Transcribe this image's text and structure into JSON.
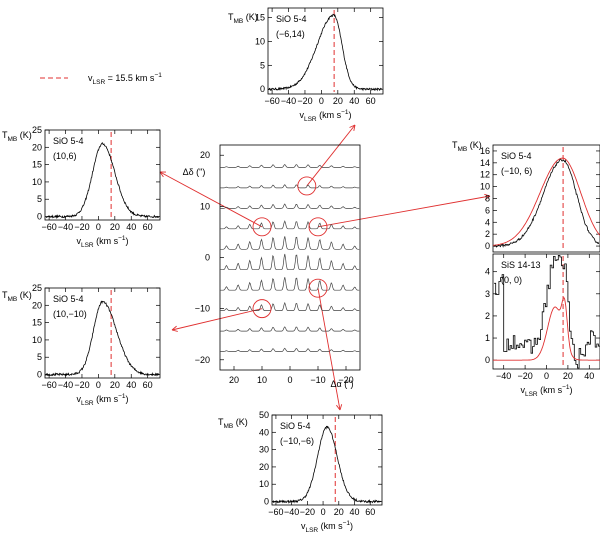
{
  "legend": {
    "label": "vLSR = 15.5 km s-1",
    "main": "v",
    "sub": "LSR",
    "rest": " = 15.5 km s",
    "sup": "−1"
  },
  "colors": {
    "model": "#e03030",
    "spectrum": "#000000"
  },
  "chart_data": [
    {
      "type": "line",
      "id": "center-map",
      "xlabel": "Δα (\")",
      "ylabel": "Δδ (\")",
      "xlim": [
        25,
        -25
      ],
      "ylim": [
        -22,
        22
      ],
      "x_ticks": [
        20,
        10,
        0,
        -10,
        -20
      ],
      "y_ticks": [
        20,
        10,
        0,
        -10,
        -20
      ],
      "row_offsets": [
        18,
        14,
        10,
        6,
        2,
        -2,
        -6,
        -10,
        -14,
        -18
      ],
      "column_offsets": [
        22,
        18,
        14,
        10,
        6,
        2,
        -2,
        -6,
        -10,
        -14,
        -18,
        -22
      ],
      "marked_positions": [
        [
          -6,
          14
        ],
        [
          10,
          6
        ],
        [
          -10,
          6
        ],
        [
          10,
          -10
        ],
        [
          -10,
          -6
        ]
      ]
    },
    {
      "type": "line",
      "id": "panel-top",
      "line_label": "SiO 5-4",
      "position": "(−6,14)",
      "xlabel": "vLSR (km s−1)",
      "ylabel": "TMB (K)",
      "xlim": [
        -65,
        75
      ],
      "ylim": [
        -1,
        17
      ],
      "x_ticks": [
        -60,
        -40,
        -20,
        0,
        20,
        40,
        60
      ],
      "y_ticks": [
        0,
        5,
        10,
        15
      ],
      "vline": 15.5,
      "profile": {
        "peak": 15.5,
        "center": 15,
        "sigma_left": 20,
        "sigma_right": 10
      }
    },
    {
      "type": "line",
      "id": "panel-left-upper",
      "line_label": "SiO 5-4",
      "position": "(10,6)",
      "xlabel": "vLSR (km s−1)",
      "ylabel": "TMB (K)",
      "xlim": [
        -65,
        75
      ],
      "ylim": [
        -1,
        25
      ],
      "x_ticks": [
        -60,
        -40,
        -20,
        0,
        20,
        40,
        60
      ],
      "y_ticks": [
        0,
        5,
        10,
        15,
        20,
        25
      ],
      "vline": 15.5,
      "profile": {
        "peak": 21,
        "center": 5,
        "sigma_left": 12,
        "sigma_right": 15
      }
    },
    {
      "type": "line",
      "id": "panel-left-lower",
      "line_label": "SiO 5-4",
      "position": "(10,−10)",
      "xlabel": "vLSR (km s−1)",
      "ylabel": "TMB (K)",
      "xlim": [
        -65,
        75
      ],
      "ylim": [
        -1,
        25
      ],
      "x_ticks": [
        -60,
        -40,
        -20,
        0,
        20,
        40,
        60
      ],
      "y_ticks": [
        0,
        5,
        10,
        15,
        20,
        25
      ],
      "vline": 15.5,
      "profile": {
        "peak": 21,
        "center": 5,
        "sigma_left": 11,
        "sigma_right": 17
      }
    },
    {
      "type": "line",
      "id": "panel-bottom",
      "line_label": "SiO 5-4",
      "position": "(−10,−6)",
      "xlabel": "vLSR (km s−1)",
      "ylabel": "TMB (K)",
      "xlim": [
        -65,
        75
      ],
      "ylim": [
        -2,
        50
      ],
      "x_ticks": [
        -60,
        -40,
        -20,
        0,
        20,
        40,
        60
      ],
      "y_ticks": [
        0,
        10,
        20,
        30,
        40,
        50
      ],
      "vline": 15.5,
      "profile": {
        "peak": 43,
        "center": 5,
        "sigma_left": 12,
        "sigma_right": 13
      }
    },
    {
      "type": "line",
      "id": "panel-right-upper",
      "line_label": "SiO 5-4",
      "position": "(−10, 6)",
      "ylabel": "TMB (K)",
      "xlim": [
        -50,
        50
      ],
      "ylim": [
        -1,
        17
      ],
      "y_ticks": [
        0,
        2,
        4,
        6,
        8,
        10,
        12,
        14,
        16
      ],
      "vline": 15.5,
      "profile": {
        "peak": 14.5,
        "center": 15,
        "sigma_left": 18,
        "sigma_right": 13
      },
      "model": {
        "peak": 14.8,
        "center": 15,
        "sigma_left": 21,
        "sigma_right": 17
      }
    },
    {
      "type": "line",
      "id": "panel-right-lower",
      "line_label": "SiS 14-13",
      "position": "(0, 0)",
      "xlabel": "vLSR (km s−1)",
      "xlim": [
        -50,
        50
      ],
      "ylim": [
        -0.4,
        4.8
      ],
      "x_ticks": [
        -40,
        -20,
        0,
        20,
        40
      ],
      "y_ticks": [
        0,
        1,
        2,
        3,
        4
      ],
      "vline": 15.5,
      "model_components": [
        {
          "peak": 2.4,
          "center": 8,
          "sigma": 7
        },
        {
          "peak": 1.7,
          "center": 17,
          "sigma": 2.5
        }
      ]
    }
  ]
}
